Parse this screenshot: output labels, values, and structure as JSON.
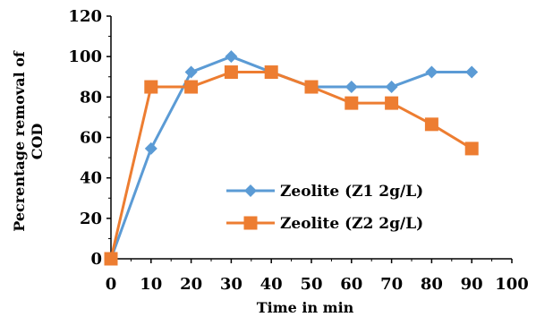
{
  "chart_data": {
    "type": "line",
    "title": "",
    "xlabel": "Time in min",
    "ylabel_lines": [
      "Pecrentage removal of",
      "COD"
    ],
    "xlim": [
      0,
      100
    ],
    "ylim": [
      0,
      120
    ],
    "x_ticks": [
      0,
      10,
      20,
      30,
      40,
      50,
      60,
      70,
      80,
      90,
      100
    ],
    "y_ticks": [
      0,
      20,
      40,
      60,
      80,
      100,
      120
    ],
    "grid": false,
    "legend_position": "center-right",
    "series": [
      {
        "name": "Zeolite (Z1 2g/L)",
        "color": "#5B9BD5",
        "marker": "diamond",
        "x": [
          0,
          10,
          20,
          30,
          40,
          50,
          60,
          70,
          80,
          90
        ],
        "y": [
          0,
          54.5,
          92.3,
          100,
          92.3,
          85,
          85,
          85,
          92.3,
          92.3
        ]
      },
      {
        "name": "Zeolite (Z2 2g/L)",
        "color": "#ED7D31",
        "marker": "square",
        "x": [
          0,
          10,
          20,
          30,
          40,
          50,
          60,
          70,
          80,
          90
        ],
        "y": [
          0,
          85,
          85,
          92.3,
          92.3,
          85,
          77,
          77,
          66.5,
          54.5
        ]
      }
    ]
  }
}
